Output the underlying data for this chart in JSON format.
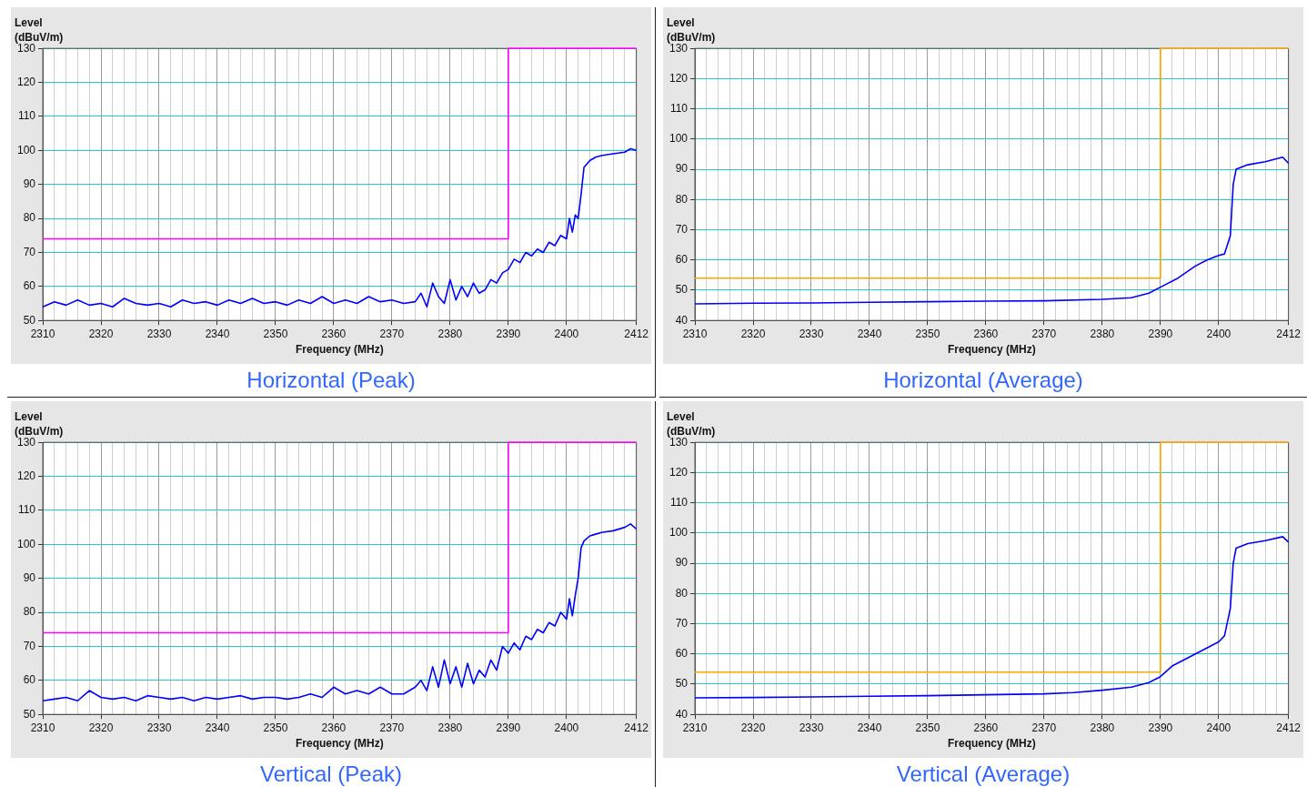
{
  "chart_data": [
    {
      "type": "line",
      "title": "Horizontal (Peak)",
      "xlabel": "Frequency (MHz)",
      "ylabel": "Level (dBuV/m)",
      "grid": true,
      "legend": false,
      "xlim": [
        2310,
        2412
      ],
      "xticks": [
        2310,
        {
          "value": 2312,
          "label": null
        },
        {
          "value": 2314,
          "label": null
        },
        {
          "value": 2316,
          "label": null
        },
        {
          "value": 2318,
          "label": null
        },
        2320,
        {
          "value": 2322,
          "label": null
        },
        {
          "value": 2324,
          "label": null
        },
        {
          "value": 2326,
          "label": null
        },
        {
          "value": 2328,
          "label": null
        },
        2330,
        {
          "value": 2332,
          "label": null
        },
        {
          "value": 2334,
          "label": null
        },
        {
          "value": 2336,
          "label": null
        },
        {
          "value": 2338,
          "label": null
        },
        2340,
        {
          "value": 2342,
          "label": null
        },
        {
          "value": 2344,
          "label": null
        },
        {
          "value": 2346,
          "label": null
        },
        {
          "value": 2348,
          "label": null
        },
        2350,
        {
          "value": 2352,
          "label": null
        },
        {
          "value": 2354,
          "label": null
        },
        {
          "value": 2356,
          "label": null
        },
        {
          "value": 2358,
          "label": null
        },
        2360,
        {
          "value": 2362,
          "label": null
        },
        {
          "value": 2364,
          "label": null
        },
        {
          "value": 2366,
          "label": null
        },
        {
          "value": 2368,
          "label": null
        },
        2370,
        {
          "value": 2372,
          "label": null
        },
        {
          "value": 2374,
          "label": null
        },
        {
          "value": 2376,
          "label": null
        },
        {
          "value": 2378,
          "label": null
        },
        2380,
        {
          "value": 2382,
          "label": null
        },
        {
          "value": 2384,
          "label": null
        },
        {
          "value": 2386,
          "label": null
        },
        {
          "value": 2388,
          "label": null
        },
        2390,
        {
          "value": 2392,
          "label": null
        },
        {
          "value": 2394,
          "label": null
        },
        {
          "value": 2396,
          "label": null
        },
        {
          "value": 2398,
          "label": null
        },
        2400,
        {
          "value": 2402,
          "label": null
        },
        {
          "value": 2404,
          "label": null
        },
        {
          "value": 2406,
          "label": null
        },
        {
          "value": 2408,
          "label": null
        },
        {
          "value": 2410,
          "label": null
        },
        2412
      ],
      "ylim": [
        50,
        130
      ],
      "yticks": [
        50,
        60,
        70,
        80,
        90,
        100,
        110,
        120,
        130
      ],
      "series": [
        {
          "color": "#ff00ff",
          "x": [
            2310,
            2390,
            2390,
            2412
          ],
          "values": [
            74,
            74,
            130,
            130
          ]
        },
        {
          "color": "#0000ff",
          "x": [
            2310,
            2312,
            2314,
            2316,
            2318,
            2320,
            2322,
            2324,
            2326,
            2328,
            2330,
            2332,
            2334,
            2336,
            2338,
            2340,
            2342,
            2344,
            2346,
            2348,
            2350,
            2352,
            2354,
            2356,
            2358,
            2360,
            2362,
            2364,
            2366,
            2368,
            2370,
            2372,
            2374,
            2375,
            2376,
            2377,
            2378,
            2379,
            2380,
            2381,
            2382,
            2383,
            2384,
            2385,
            2386,
            2387,
            2388,
            2389,
            2390,
            2391,
            2392,
            2393,
            2394,
            2395,
            2396,
            2397,
            2398,
            2399,
            2400,
            2400.5,
            2401,
            2401.5,
            2402,
            2402.5,
            2403,
            2404,
            2405,
            2406,
            2408,
            2410,
            2411,
            2412
          ],
          "values": [
            54,
            55.5,
            54.5,
            56,
            54.5,
            55,
            54,
            56.5,
            55,
            54.5,
            55,
            54,
            56,
            55,
            55.5,
            54.5,
            56,
            55,
            56.5,
            55,
            55.5,
            54.5,
            56,
            55,
            57,
            55,
            56,
            55,
            57,
            55.5,
            56,
            55,
            55.5,
            58,
            54,
            61,
            57,
            55,
            62,
            56,
            60,
            57,
            61,
            58,
            59,
            62,
            61,
            64,
            65,
            68,
            67,
            70,
            69,
            71,
            70,
            73,
            72,
            75,
            74,
            80,
            76,
            81,
            80,
            87,
            95,
            97,
            98,
            98.5,
            99,
            99.5,
            100.5,
            100
          ]
        }
      ]
    },
    {
      "type": "line",
      "title": "Horizontal (Average)",
      "xlabel": "Frequency (MHz)",
      "ylabel": "Level (dBuV/m)",
      "grid": true,
      "legend": false,
      "xlim": [
        2310,
        2412
      ],
      "xticks": [
        2310,
        {
          "value": 2312,
          "label": null
        },
        {
          "value": 2314,
          "label": null
        },
        {
          "value": 2316,
          "label": null
        },
        {
          "value": 2318,
          "label": null
        },
        2320,
        {
          "value": 2322,
          "label": null
        },
        {
          "value": 2324,
          "label": null
        },
        {
          "value": 2326,
          "label": null
        },
        {
          "value": 2328,
          "label": null
        },
        2330,
        {
          "value": 2332,
          "label": null
        },
        {
          "value": 2334,
          "label": null
        },
        {
          "value": 2336,
          "label": null
        },
        {
          "value": 2338,
          "label": null
        },
        2340,
        {
          "value": 2342,
          "label": null
        },
        {
          "value": 2344,
          "label": null
        },
        {
          "value": 2346,
          "label": null
        },
        {
          "value": 2348,
          "label": null
        },
        2350,
        {
          "value": 2352,
          "label": null
        },
        {
          "value": 2354,
          "label": null
        },
        {
          "value": 2356,
          "label": null
        },
        {
          "value": 2358,
          "label": null
        },
        2360,
        {
          "value": 2362,
          "label": null
        },
        {
          "value": 2364,
          "label": null
        },
        {
          "value": 2366,
          "label": null
        },
        {
          "value": 2368,
          "label": null
        },
        2370,
        {
          "value": 2372,
          "label": null
        },
        {
          "value": 2374,
          "label": null
        },
        {
          "value": 2376,
          "label": null
        },
        {
          "value": 2378,
          "label": null
        },
        2380,
        {
          "value": 2382,
          "label": null
        },
        {
          "value": 2384,
          "label": null
        },
        {
          "value": 2386,
          "label": null
        },
        {
          "value": 2388,
          "label": null
        },
        2390,
        {
          "value": 2392,
          "label": null
        },
        {
          "value": 2394,
          "label": null
        },
        {
          "value": 2396,
          "label": null
        },
        {
          "value": 2398,
          "label": null
        },
        2400,
        {
          "value": 2402,
          "label": null
        },
        {
          "value": 2404,
          "label": null
        },
        {
          "value": 2406,
          "label": null
        },
        {
          "value": 2408,
          "label": null
        },
        {
          "value": 2410,
          "label": null
        },
        2412
      ],
      "ylim": [
        40,
        130
      ],
      "yticks": [
        40,
        50,
        60,
        70,
        80,
        90,
        100,
        110,
        120,
        130
      ],
      "series": [
        {
          "color": "#ffa500",
          "x": [
            2310,
            2390,
            2390,
            2412
          ],
          "values": [
            54,
            54,
            130,
            130
          ]
        },
        {
          "color": "#0000ff",
          "x": [
            2310,
            2320,
            2330,
            2340,
            2350,
            2360,
            2370,
            2380,
            2385,
            2388,
            2390,
            2393,
            2396,
            2398,
            2400,
            2401,
            2402,
            2402.5,
            2403,
            2405,
            2408,
            2411,
            2412
          ],
          "values": [
            45.5,
            45.7,
            45.8,
            46,
            46.2,
            46.4,
            46.5,
            47,
            47.5,
            49,
            51,
            54,
            58,
            60,
            61.5,
            62,
            68,
            85,
            90,
            91.5,
            92.5,
            94,
            92
          ]
        }
      ]
    },
    {
      "type": "line",
      "title": "Vertical (Peak)",
      "xlabel": "Frequency (MHz)",
      "ylabel": "Level (dBuV/m)",
      "grid": true,
      "legend": false,
      "xlim": [
        2310,
        2412
      ],
      "xticks": [
        2310,
        {
          "value": 2312,
          "label": null
        },
        {
          "value": 2314,
          "label": null
        },
        {
          "value": 2316,
          "label": null
        },
        {
          "value": 2318,
          "label": null
        },
        2320,
        {
          "value": 2322,
          "label": null
        },
        {
          "value": 2324,
          "label": null
        },
        {
          "value": 2326,
          "label": null
        },
        {
          "value": 2328,
          "label": null
        },
        2330,
        {
          "value": 2332,
          "label": null
        },
        {
          "value": 2334,
          "label": null
        },
        {
          "value": 2336,
          "label": null
        },
        {
          "value": 2338,
          "label": null
        },
        2340,
        {
          "value": 2342,
          "label": null
        },
        {
          "value": 2344,
          "label": null
        },
        {
          "value": 2346,
          "label": null
        },
        {
          "value": 2348,
          "label": null
        },
        2350,
        {
          "value": 2352,
          "label": null
        },
        {
          "value": 2354,
          "label": null
        },
        {
          "value": 2356,
          "label": null
        },
        {
          "value": 2358,
          "label": null
        },
        2360,
        {
          "value": 2362,
          "label": null
        },
        {
          "value": 2364,
          "label": null
        },
        {
          "value": 2366,
          "label": null
        },
        {
          "value": 2368,
          "label": null
        },
        2370,
        {
          "value": 2372,
          "label": null
        },
        {
          "value": 2374,
          "label": null
        },
        {
          "value": 2376,
          "label": null
        },
        {
          "value": 2378,
          "label": null
        },
        2380,
        {
          "value": 2382,
          "label": null
        },
        {
          "value": 2384,
          "label": null
        },
        {
          "value": 2386,
          "label": null
        },
        {
          "value": 2388,
          "label": null
        },
        2390,
        {
          "value": 2392,
          "label": null
        },
        {
          "value": 2394,
          "label": null
        },
        {
          "value": 2396,
          "label": null
        },
        {
          "value": 2398,
          "label": null
        },
        2400,
        {
          "value": 2402,
          "label": null
        },
        {
          "value": 2404,
          "label": null
        },
        {
          "value": 2406,
          "label": null
        },
        {
          "value": 2408,
          "label": null
        },
        {
          "value": 2410,
          "label": null
        },
        2412
      ],
      "ylim": [
        50,
        130
      ],
      "yticks": [
        50,
        60,
        70,
        80,
        90,
        100,
        110,
        120,
        130
      ],
      "series": [
        {
          "color": "#ff00ff",
          "x": [
            2310,
            2390,
            2390,
            2412
          ],
          "values": [
            74,
            74,
            130,
            130
          ]
        },
        {
          "color": "#0000ff",
          "x": [
            2310,
            2312,
            2314,
            2316,
            2318,
            2320,
            2322,
            2324,
            2326,
            2328,
            2330,
            2332,
            2334,
            2336,
            2338,
            2340,
            2342,
            2344,
            2346,
            2348,
            2350,
            2352,
            2354,
            2356,
            2358,
            2360,
            2362,
            2364,
            2366,
            2368,
            2370,
            2372,
            2374,
            2375,
            2376,
            2377,
            2378,
            2379,
            2380,
            2381,
            2382,
            2383,
            2384,
            2385,
            2386,
            2387,
            2388,
            2389,
            2390,
            2391,
            2392,
            2393,
            2394,
            2395,
            2396,
            2397,
            2398,
            2399,
            2400,
            2400.5,
            2401,
            2401.5,
            2402,
            2402.5,
            2403,
            2404,
            2405,
            2406,
            2408,
            2410,
            2411,
            2412
          ],
          "values": [
            54,
            54.5,
            55,
            54,
            57,
            55,
            54.5,
            55,
            54,
            55.5,
            55,
            54.5,
            55,
            54,
            55,
            54.5,
            55,
            55.5,
            54.5,
            55,
            55,
            54.5,
            55,
            56,
            55,
            58,
            56,
            57,
            56,
            58,
            56,
            56,
            58,
            60,
            57,
            64,
            58,
            66,
            59,
            64,
            58,
            65,
            59,
            63,
            61,
            66,
            63,
            70,
            68,
            71,
            69,
            73,
            72,
            75,
            74,
            77,
            76,
            80,
            78,
            84,
            79,
            85,
            90,
            99,
            101,
            102.5,
            103,
            103.5,
            104,
            105,
            106,
            104.5
          ]
        }
      ]
    },
    {
      "type": "line",
      "title": "Vertical (Average)",
      "xlabel": "Frequency (MHz)",
      "ylabel": "Level (dBuV/m)",
      "grid": true,
      "legend": false,
      "xlim": [
        2310,
        2412
      ],
      "xticks": [
        2310,
        {
          "value": 2312,
          "label": null
        },
        {
          "value": 2314,
          "label": null
        },
        {
          "value": 2316,
          "label": null
        },
        {
          "value": 2318,
          "label": null
        },
        2320,
        {
          "value": 2322,
          "label": null
        },
        {
          "value": 2324,
          "label": null
        },
        {
          "value": 2326,
          "label": null
        },
        {
          "value": 2328,
          "label": null
        },
        2330,
        {
          "value": 2332,
          "label": null
        },
        {
          "value": 2334,
          "label": null
        },
        {
          "value": 2336,
          "label": null
        },
        {
          "value": 2338,
          "label": null
        },
        2340,
        {
          "value": 2342,
          "label": null
        },
        {
          "value": 2344,
          "label": null
        },
        {
          "value": 2346,
          "label": null
        },
        {
          "value": 2348,
          "label": null
        },
        2350,
        {
          "value": 2352,
          "label": null
        },
        {
          "value": 2354,
          "label": null
        },
        {
          "value": 2356,
          "label": null
        },
        {
          "value": 2358,
          "label": null
        },
        2360,
        {
          "value": 2362,
          "label": null
        },
        {
          "value": 2364,
          "label": null
        },
        {
          "value": 2366,
          "label": null
        },
        {
          "value": 2368,
          "label": null
        },
        2370,
        {
          "value": 2372,
          "label": null
        },
        {
          "value": 2374,
          "label": null
        },
        {
          "value": 2376,
          "label": null
        },
        {
          "value": 2378,
          "label": null
        },
        2380,
        {
          "value": 2382,
          "label": null
        },
        {
          "value": 2384,
          "label": null
        },
        {
          "value": 2386,
          "label": null
        },
        {
          "value": 2388,
          "label": null
        },
        2390,
        {
          "value": 2392,
          "label": null
        },
        {
          "value": 2394,
          "label": null
        },
        {
          "value": 2396,
          "label": null
        },
        {
          "value": 2398,
          "label": null
        },
        2400,
        {
          "value": 2402,
          "label": null
        },
        {
          "value": 2404,
          "label": null
        },
        {
          "value": 2406,
          "label": null
        },
        {
          "value": 2408,
          "label": null
        },
        {
          "value": 2410,
          "label": null
        },
        2412
      ],
      "ylim": [
        40,
        130
      ],
      "yticks": [
        40,
        50,
        60,
        70,
        80,
        90,
        100,
        110,
        120,
        130
      ],
      "series": [
        {
          "color": "#ffa500",
          "x": [
            2310,
            2390,
            2390,
            2412
          ],
          "values": [
            54,
            54,
            130,
            130
          ]
        },
        {
          "color": "#0000ff",
          "x": [
            2310,
            2320,
            2330,
            2340,
            2350,
            2360,
            2370,
            2375,
            2380,
            2385,
            2388,
            2390,
            2392,
            2396,
            2400,
            2401,
            2402,
            2402.5,
            2403,
            2405,
            2408,
            2411,
            2412
          ],
          "values": [
            45.5,
            45.6,
            45.8,
            46,
            46.2,
            46.5,
            46.8,
            47.2,
            48,
            49,
            50.5,
            52.5,
            56,
            60,
            64,
            66,
            75,
            90,
            95,
            96.5,
            97.5,
            98.8,
            97
          ]
        }
      ]
    }
  ]
}
